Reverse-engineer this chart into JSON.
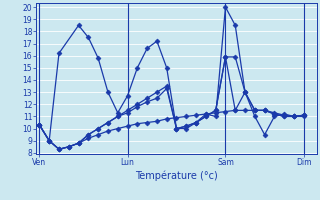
{
  "background_color": "#cce8f0",
  "grid_color": "#ffffff",
  "line_color": "#1a3aaa",
  "xlabel": "Température (°c)",
  "ylim": [
    8,
    20
  ],
  "yticks": [
    8,
    9,
    10,
    11,
    12,
    13,
    14,
    15,
    16,
    17,
    18,
    19,
    20
  ],
  "xtick_labels": [
    "Ven",
    "Lun",
    "Sam",
    "Dim"
  ],
  "xtick_positions": [
    0,
    9,
    19,
    27
  ],
  "xlim": [
    -0.3,
    28.3
  ],
  "line1_x": [
    0,
    1,
    2,
    4,
    5,
    6,
    7,
    8,
    9,
    10,
    11,
    12,
    13,
    14,
    15,
    16,
    17,
    18,
    19,
    20,
    21,
    22,
    23,
    24,
    25,
    26,
    27
  ],
  "line1_y": [
    10.3,
    9.0,
    16.2,
    18.5,
    17.5,
    15.8,
    13.0,
    11.3,
    12.7,
    15.0,
    16.6,
    17.2,
    15.0,
    10.0,
    10.0,
    10.5,
    11.2,
    11.0,
    20.0,
    18.5,
    13.0,
    11.0,
    9.5,
    11.0,
    11.2,
    11.0,
    11.0
  ],
  "line2_x": [
    0,
    1,
    2,
    3,
    4,
    5,
    6,
    7,
    8,
    9,
    10,
    11,
    12,
    13,
    14,
    15,
    16,
    17,
    18,
    19,
    20,
    21,
    22,
    23,
    24,
    25,
    26,
    27
  ],
  "line2_y": [
    10.3,
    9.0,
    8.3,
    8.5,
    8.8,
    9.2,
    9.5,
    9.8,
    10.0,
    10.2,
    10.4,
    10.5,
    10.6,
    10.8,
    10.9,
    11.0,
    11.1,
    11.2,
    11.3,
    11.4,
    11.5,
    11.5,
    11.5,
    11.5,
    11.3,
    11.1,
    11.0,
    11.1
  ],
  "line3_x": [
    0,
    1,
    2,
    3,
    4,
    5,
    6,
    7,
    8,
    9,
    10,
    11,
    12,
    13,
    14,
    15,
    16,
    17,
    18,
    19,
    20,
    21,
    22,
    23,
    24,
    25,
    26,
    27
  ],
  "line3_y": [
    10.3,
    9.0,
    8.3,
    8.5,
    8.8,
    9.5,
    10.0,
    10.5,
    11.0,
    11.3,
    11.8,
    12.2,
    12.5,
    13.3,
    10.0,
    10.2,
    10.5,
    11.0,
    11.5,
    15.9,
    11.5,
    13.0,
    11.5,
    11.5,
    11.2,
    11.0,
    11.0,
    11.1
  ],
  "line4_x": [
    0,
    1,
    2,
    3,
    4,
    5,
    6,
    7,
    8,
    9,
    10,
    11,
    12,
    13,
    14,
    15,
    16,
    17,
    18,
    19,
    20,
    21,
    22,
    23,
    24,
    25,
    26,
    27
  ],
  "line4_y": [
    10.3,
    9.0,
    8.3,
    8.5,
    8.8,
    9.5,
    10.0,
    10.5,
    11.0,
    11.5,
    12.0,
    12.5,
    13.0,
    13.5,
    10.0,
    10.2,
    10.5,
    11.0,
    11.5,
    15.9,
    15.9,
    13.0,
    11.5,
    11.5,
    11.2,
    11.0,
    11.0,
    11.1
  ]
}
